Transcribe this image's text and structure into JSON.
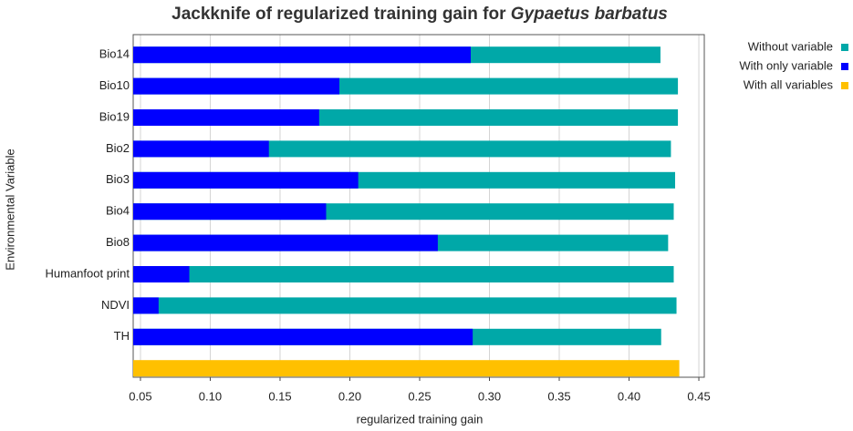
{
  "chart_data": {
    "type": "bar",
    "orientation": "horizontal",
    "title": [
      "Jackknife of regularized training  gain for",
      "Gypaetus barbatus"
    ],
    "xlabel": "regularized training gain",
    "ylabel": "Environmental Variable",
    "categories": [
      "Bio14",
      "Bio10",
      "Bio19",
      "Bio2",
      "Bio3",
      "Bio4",
      "Bio8",
      "Humanfoot print",
      "NDVI",
      "TH",
      null
    ],
    "series": [
      {
        "name": "Without variable",
        "color": "#00a8a8",
        "values": [
          0.4225,
          0.435,
          0.435,
          0.43,
          0.433,
          0.432,
          0.428,
          0.432,
          0.434,
          0.423,
          null
        ]
      },
      {
        "name": "With only variable",
        "color": "#0000ff",
        "values": [
          0.2866,
          0.1925,
          0.178,
          0.142,
          0.206,
          0.183,
          0.263,
          0.085,
          0.063,
          0.288,
          null
        ]
      },
      {
        "name": "With all variables",
        "color": "#ffc000",
        "values": [
          null,
          null,
          null,
          null,
          null,
          null,
          null,
          null,
          null,
          null,
          0.436
        ]
      }
    ],
    "xlim": [
      0.0448,
      0.4539
    ],
    "xticks": [
      0.05,
      {
        "value": 0.1,
        "label": "0.10"
      },
      0.15,
      {
        "value": 0.2,
        "label": "0.20"
      },
      0.25,
      {
        "value": 0.3,
        "label": "0.30"
      },
      0.35,
      {
        "value": 0.4,
        "label": "0.40"
      },
      0.45
    ],
    "grid": true,
    "legend": "right"
  }
}
